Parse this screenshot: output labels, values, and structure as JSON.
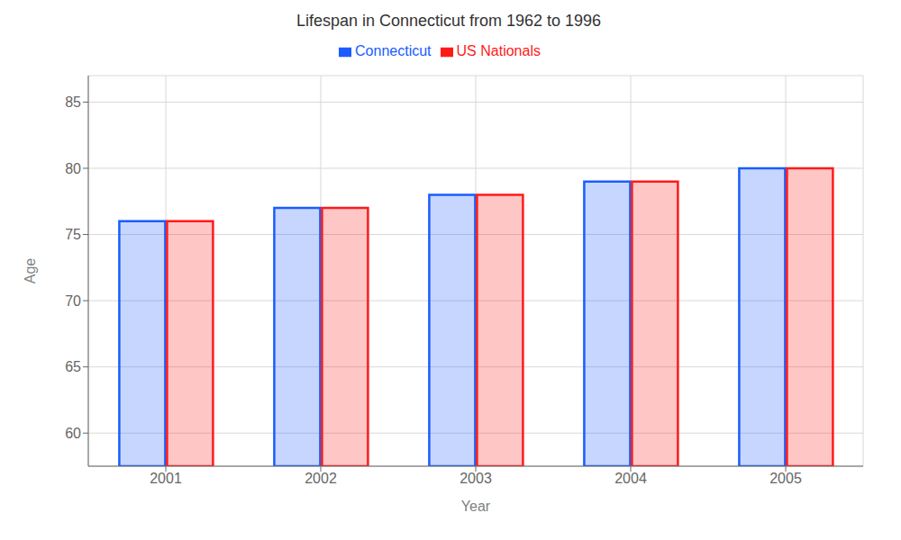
{
  "chart_data": {
    "type": "bar",
    "title": "Lifespan in Connecticut from 1962 to 1996",
    "x_label": "Year",
    "y_label": "Age",
    "categories": [
      "2001",
      "2002",
      "2003",
      "2004",
      "2005"
    ],
    "series": [
      {
        "name": "Connecticut",
        "color": "#1a5cff",
        "values": [
          76,
          77,
          78,
          79,
          80
        ]
      },
      {
        "name": "US Nationals",
        "color": "#ff1a1a",
        "values": [
          76,
          77,
          78,
          79,
          80
        ]
      }
    ],
    "ylim": [
      57.5,
      87
    ],
    "yticks": [
      60,
      65,
      70,
      75,
      80,
      85
    ],
    "grid": true,
    "legend": "top"
  }
}
